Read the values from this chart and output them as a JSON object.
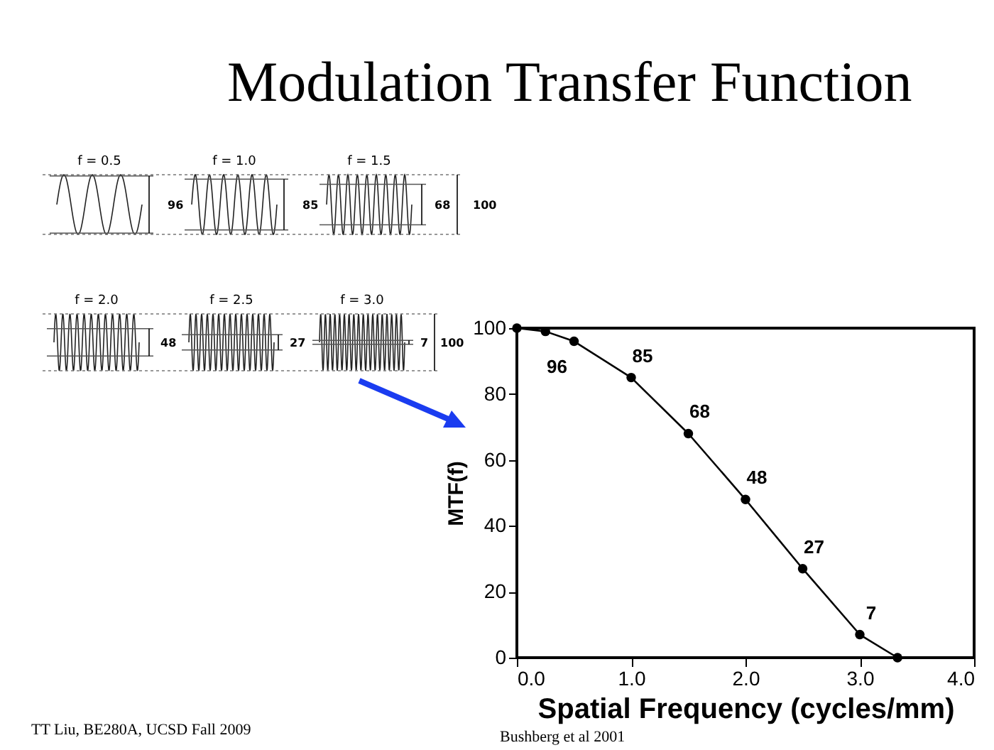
{
  "chart_data": {
    "type": "line",
    "title": "Modulation Transfer Function",
    "xlabel": "Spatial Frequency (cycles/mm)",
    "ylabel": "MTF(f)",
    "x": [
      0,
      0.25,
      0.5,
      1.0,
      1.5,
      2.0,
      2.5,
      3.0,
      3.33
    ],
    "series": [
      {
        "color": "#000000",
        "values": [
          100,
          99,
          96,
          85,
          68,
          48,
          27,
          7,
          0
        ],
        "value_labels": [
          null,
          null,
          "96",
          "85",
          "68",
          "48",
          "27",
          "7",
          null
        ]
      }
    ],
    "xlim": [
      0,
      4
    ],
    "xticks": [
      {
        "value": 0,
        "label": "0.0"
      },
      {
        "value": 1,
        "label": "1.0"
      },
      {
        "value": 2,
        "label": "2.0"
      },
      {
        "value": 3,
        "label": "3.0"
      },
      {
        "value": 4,
        "label": "4.0"
      }
    ],
    "ylim": [
      0,
      100
    ],
    "yticks": [
      0,
      20,
      40,
      60,
      80,
      100
    ],
    "grid": false,
    "marker": "circle",
    "line_style": "solid",
    "annotations": [
      "f = 0.5",
      "f = 1.0",
      "f = 1.5",
      "f = 2.0",
      "f = 2.5",
      "f = 3.0",
      "96",
      "85",
      "68",
      "48",
      "27",
      "7",
      "100",
      "100",
      "TT Liu, BE280A, UCSD Fall 2009",
      "Bushberg et al 2001"
    ]
  }
}
